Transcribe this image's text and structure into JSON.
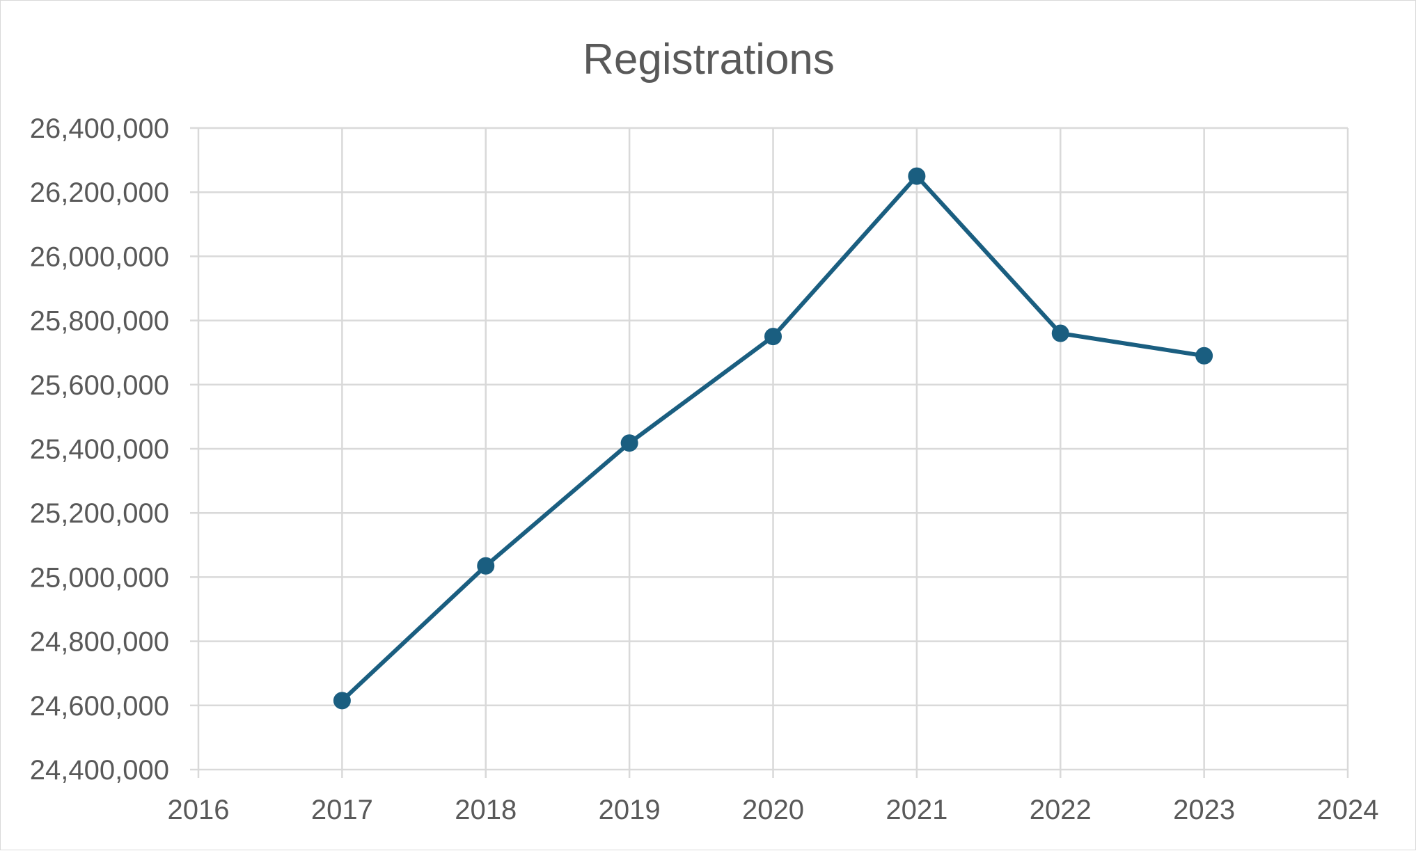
{
  "chart_data": {
    "type": "scatter",
    "title": "Registrations",
    "xlabel": "",
    "ylabel": "",
    "xlim": [
      2016,
      2024
    ],
    "ylim": [
      24400000,
      26400000
    ],
    "x_ticks": [
      2016,
      2017,
      2018,
      2019,
      2020,
      2021,
      2022,
      2023,
      2024
    ],
    "y_ticks": [
      24400000,
      24600000,
      24800000,
      25000000,
      25200000,
      25400000,
      25600000,
      25800000,
      26000000,
      26200000,
      26400000
    ],
    "x_tick_labels": [
      "2016",
      "2017",
      "2018",
      "2019",
      "2020",
      "2021",
      "2022",
      "2023",
      "2024"
    ],
    "y_tick_labels": [
      "24,400,000",
      "24,600,000",
      "24,800,000",
      "25,000,000",
      "25,200,000",
      "25,400,000",
      "25,600,000",
      "25,800,000",
      "26,000,000",
      "26,200,000",
      "26,400,000"
    ],
    "grid": true,
    "legend": "none",
    "series": [
      {
        "x": [
          2017,
          2018,
          2019,
          2020,
          2021,
          2022,
          2023
        ],
        "y": [
          24615000,
          25035000,
          25418000,
          25750000,
          26250000,
          25760000,
          25690000
        ],
        "color": "#1a5e80",
        "line": true,
        "markers": true
      }
    ],
    "colors": {
      "grid": "#d9d9d9",
      "text": "#595959",
      "series": "#1a5e80"
    }
  }
}
